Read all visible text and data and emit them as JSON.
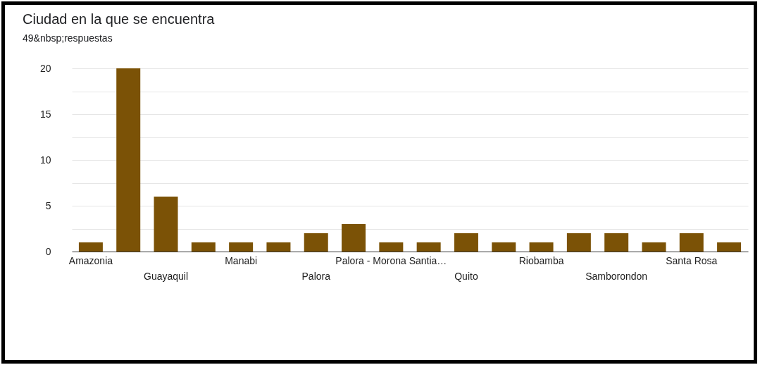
{
  "chart_data": {
    "type": "bar",
    "title": "Ciudad en la que se encuentra",
    "subtitle": "49&nbsp;respuestas",
    "categories": [
      "Amazonia",
      null,
      "Guayaquil",
      null,
      "Manabi",
      null,
      "Palora",
      null,
      "Palora - Morona Santia…",
      null,
      "Quito",
      null,
      "Riobamba",
      null,
      "Samborondon",
      null,
      "Santa Rosa",
      null
    ],
    "values": [
      1,
      20,
      6,
      1,
      1,
      1,
      2,
      3,
      1,
      1,
      2,
      1,
      1,
      2,
      2,
      1,
      2,
      1
    ],
    "color": "#7b5206",
    "ylim": [
      0,
      20
    ],
    "yticks": [
      0,
      {
        "value": 2.5,
        "label": null
      },
      5,
      {
        "value": 7.5,
        "label": null
      },
      10,
      {
        "value": 12.5,
        "label": null
      },
      15,
      {
        "value": 17.5,
        "label": null
      },
      20
    ],
    "grid": "y"
  }
}
